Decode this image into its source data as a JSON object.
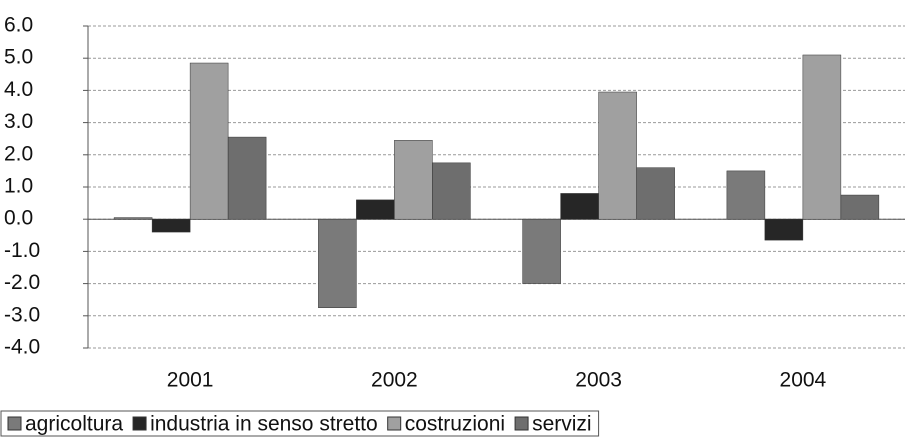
{
  "chart_data": {
    "type": "bar",
    "categories": [
      "2001",
      "2002",
      "2003",
      "2004"
    ],
    "series": [
      {
        "name": "agricoltura",
        "color": "#7a7a7a",
        "values": [
          0.05,
          -2.75,
          -2.0,
          1.5
        ]
      },
      {
        "name": "industria in senso stretto",
        "color": "#262626",
        "values": [
          -0.4,
          0.6,
          0.8,
          -0.65
        ]
      },
      {
        "name": "costruzioni",
        "color": "#a0a0a0",
        "values": [
          4.85,
          2.45,
          3.95,
          5.1
        ]
      },
      {
        "name": "servizi",
        "color": "#6e6e6e",
        "values": [
          2.55,
          1.75,
          1.6,
          0.75
        ]
      }
    ],
    "ylim": [
      -4,
      6
    ],
    "yticks": [
      {
        "value": -4,
        "label": "-4.0"
      },
      {
        "value": -3,
        "label": "-3.0"
      },
      {
        "value": -2,
        "label": "-2.0"
      },
      {
        "value": -1,
        "label": "-1.0"
      },
      {
        "value": 0,
        "label": "0.0"
      },
      {
        "value": 1,
        "label": "1.0"
      },
      {
        "value": 2,
        "label": "2.0"
      },
      {
        "value": 3,
        "label": "3.0"
      },
      {
        "value": 4,
        "label": "4.0"
      },
      {
        "value": 5,
        "label": "5.0"
      },
      {
        "value": 6,
        "label": "6.0"
      }
    ],
    "grid": true,
    "legend": "bottom"
  }
}
